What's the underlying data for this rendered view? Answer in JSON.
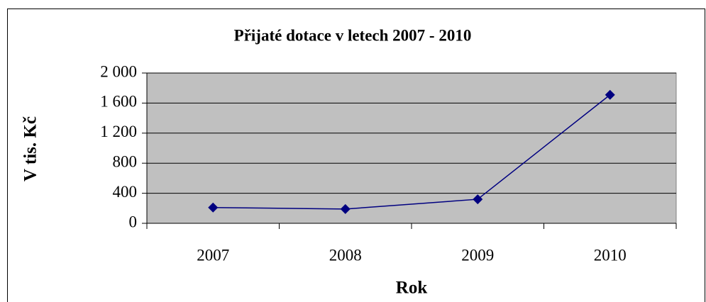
{
  "chart_data": {
    "type": "line",
    "title": "Přijaté dotace v letech 2007 - 2010",
    "x_label": "Rok",
    "y_label": "V tis. Kč",
    "categories": [
      "2007",
      "2008",
      "2009",
      "2010"
    ],
    "values": [
      210,
      190,
      320,
      1710
    ],
    "color": "#000080",
    "ylim": [
      0,
      2000
    ],
    "yticks": [
      0,
      400,
      800,
      {
        "value": 1200,
        "label": "1 200"
      },
      {
        "value": 1600,
        "label": "1 600"
      },
      {
        "value": 2000,
        "label": "2 000"
      }
    ],
    "grid": true
  }
}
